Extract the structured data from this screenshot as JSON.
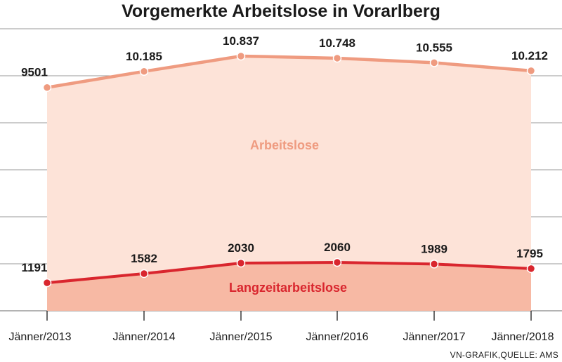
{
  "chart_data": {
    "type": "area",
    "title": "Vorgemerkte Arbeitslose in Vorarlberg",
    "categories": [
      "Jänner/2013",
      "Jänner/2014",
      "Jänner/2015",
      "Jänner/2016",
      "Jänner/2017",
      "Jänner/2018"
    ],
    "series": [
      {
        "name": "Arbeitslose",
        "values": [
          9501,
          10185,
          10837,
          10748,
          10555,
          10212
        ],
        "labels": [
          "9501",
          "10.185",
          "10.837",
          "10.748",
          "10.555",
          "10.212"
        ],
        "color": "#ef9b80",
        "fill": "#fde3d8"
      },
      {
        "name": "Langzeitarbeitslose",
        "values": [
          1191,
          1582,
          2030,
          2060,
          1989,
          1795
        ],
        "labels": [
          "1191",
          "1582",
          "2030",
          "2060",
          "1989",
          "1795"
        ],
        "color": "#d9262e",
        "fill": "#f7b9a4"
      }
    ],
    "ylim": [
      0,
      12000
    ],
    "yticks": [
      0,
      2000,
      4000,
      6000,
      8000,
      10000,
      12000
    ],
    "grid": true,
    "gridline_color": "#9a9a9a",
    "source": "VN-GRAFIK,QUELLE: AMS"
  }
}
